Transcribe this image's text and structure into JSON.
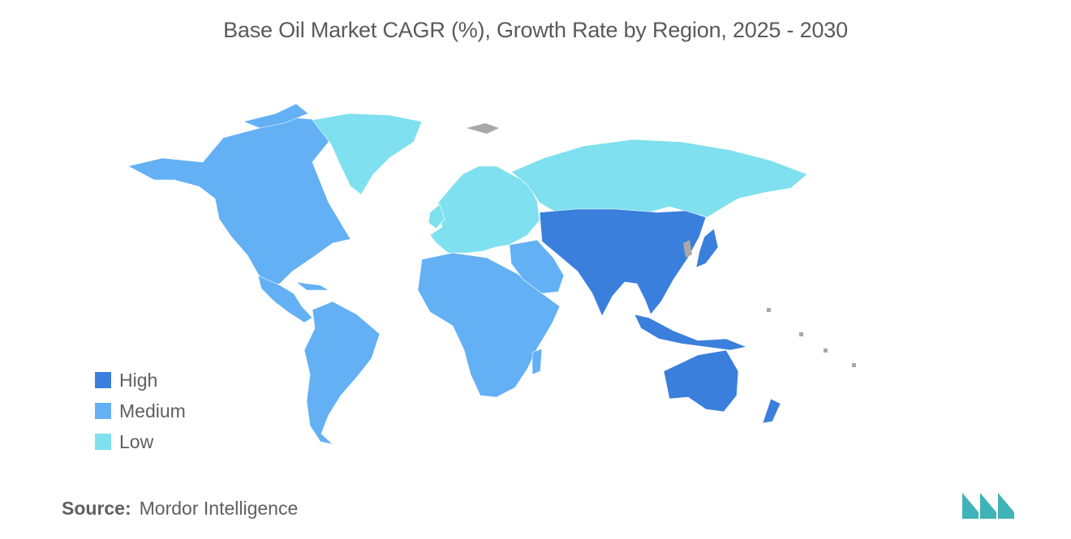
{
  "title": "Base Oil Market CAGR (%), Growth Rate by Region, 2025 - 2030",
  "legend": {
    "items": [
      {
        "label": "High",
        "color": "#3a7fdc"
      },
      {
        "label": "Medium",
        "color": "#63b0f5"
      },
      {
        "label": "Low",
        "color": "#7fe0ef"
      }
    ]
  },
  "no_data_color": "#a8a8a8",
  "regions": [
    {
      "region": "North America",
      "category": "Medium"
    },
    {
      "region": "South America",
      "category": "Medium"
    },
    {
      "region": "Middle East and Africa",
      "category": "Medium"
    },
    {
      "region": "Europe",
      "category": "Low"
    },
    {
      "region": "Asia-Pacific",
      "category": "High"
    }
  ],
  "source": {
    "label": "Source:",
    "value": "Mordor Intelligence"
  },
  "logo": {
    "name": "mordor-intelligence-logo",
    "color": "#3fb3b8"
  }
}
